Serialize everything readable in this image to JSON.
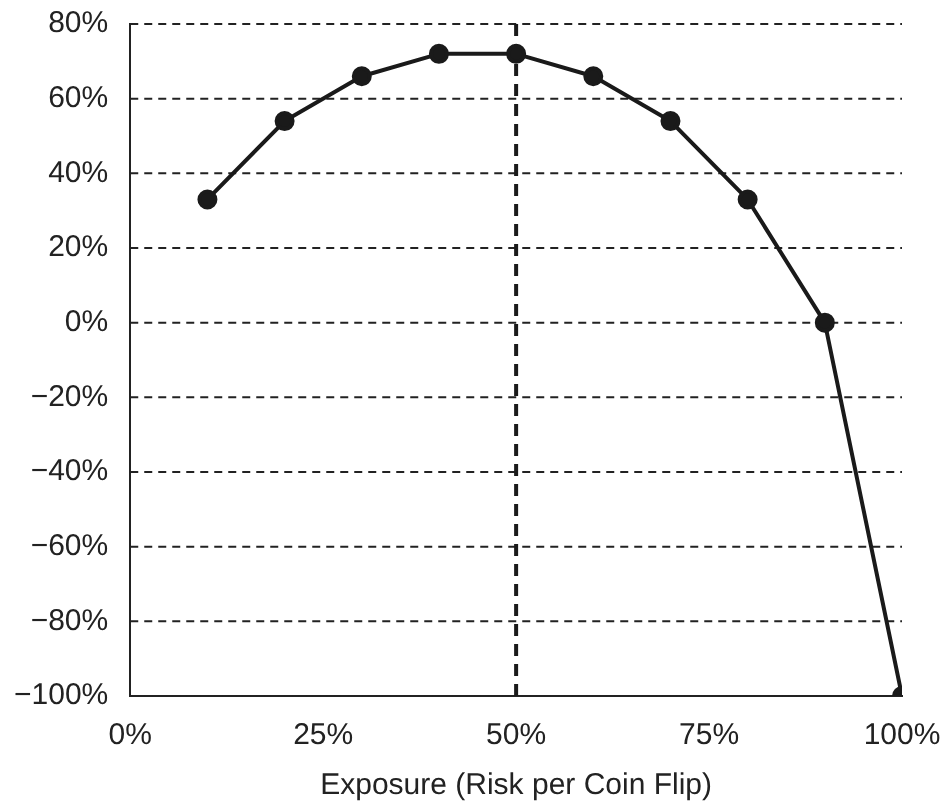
{
  "chart_data": {
    "type": "line",
    "xlabel": "Exposure (Risk per Coin Flip)",
    "x": [
      10,
      20,
      30,
      40,
      50,
      60,
      70,
      80,
      90,
      100
    ],
    "series": [
      {
        "color": "#1a1a1a",
        "values": [
          33,
          54,
          66,
          72,
          72,
          66,
          54,
          33,
          0,
          -100
        ]
      }
    ],
    "xlim": [
      0,
      100
    ],
    "xticks": [
      {
        "value": 0,
        "label": "0%"
      },
      {
        "value": 25,
        "label": "25%"
      },
      {
        "value": 50,
        "label": "50%"
      },
      {
        "value": 75,
        "label": "75%"
      },
      {
        "value": 100,
        "label": "100%"
      }
    ],
    "ylim": [
      -100,
      80
    ],
    "yticks": [
      {
        "value": -100,
        "label": "−100%"
      },
      {
        "value": -80,
        "label": "−80%"
      },
      {
        "value": -60,
        "label": "−60%"
      },
      {
        "value": -40,
        "label": "−40%"
      },
      {
        "value": -20,
        "label": "−20%"
      },
      {
        "value": 0,
        "label": "0%"
      },
      {
        "value": 20,
        "label": "20%"
      },
      {
        "value": 40,
        "label": "40%"
      },
      {
        "value": 60,
        "label": "60%"
      },
      {
        "value": 80,
        "label": "80%"
      }
    ],
    "grid": "y",
    "legend": false,
    "marker": "circle",
    "line_style": "solid",
    "ref_lines": [
      {
        "axis": "x",
        "value": 50,
        "line_style": "dashed",
        "color": "#1a1a1a"
      }
    ]
  }
}
